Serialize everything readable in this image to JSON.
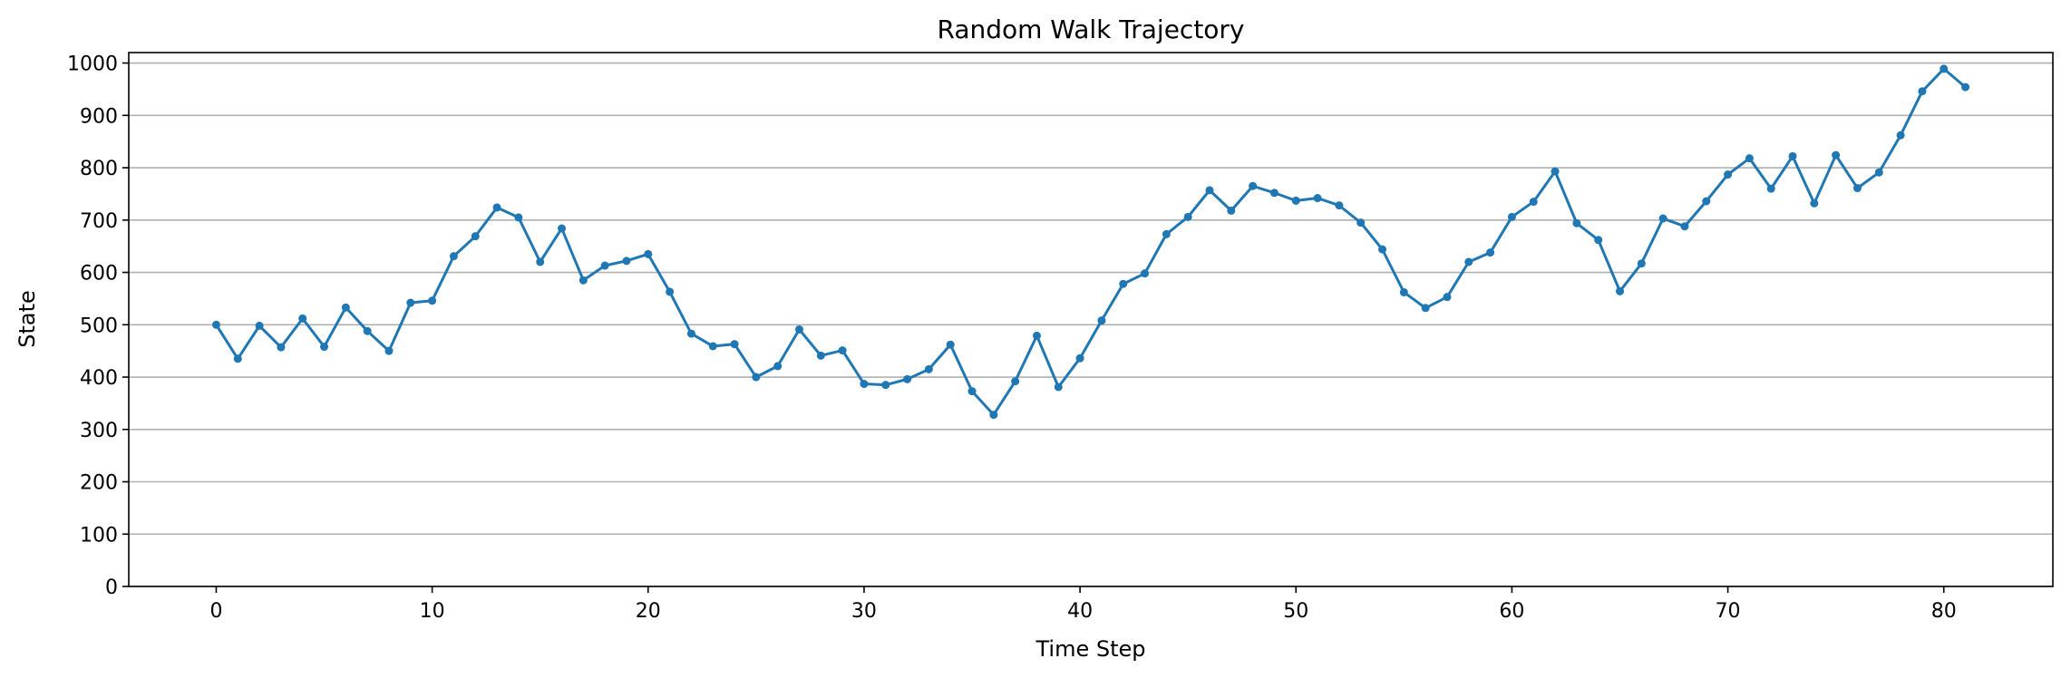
{
  "chart_data": {
    "type": "line",
    "title": "Random Walk Trajectory",
    "xlabel": "Time Step",
    "ylabel": "State",
    "xlim": [
      -4.05,
      85.05
    ],
    "ylim": [
      0,
      1020
    ],
    "x_ticks": [
      0,
      10,
      20,
      30,
      40,
      50,
      60,
      70,
      80
    ],
    "y_ticks": [
      0,
      100,
      200,
      300,
      400,
      500,
      600,
      700,
      800,
      900,
      1000
    ],
    "grid": "horizontal",
    "legend": "none",
    "series_color": "#1f77b4",
    "marker": "circle",
    "x": [
      0,
      1,
      2,
      3,
      4,
      5,
      6,
      7,
      8,
      9,
      10,
      11,
      12,
      13,
      14,
      15,
      16,
      17,
      18,
      19,
      20,
      21,
      22,
      23,
      24,
      25,
      26,
      27,
      28,
      29,
      30,
      31,
      32,
      33,
      34,
      35,
      36,
      37,
      38,
      39,
      40,
      41,
      42,
      43,
      44,
      45,
      46,
      47,
      48,
      49,
      50,
      51,
      52,
      53,
      54,
      55,
      56,
      57,
      58,
      59,
      60,
      61,
      62,
      63,
      64,
      65,
      66,
      67,
      68,
      69,
      70,
      71,
      72,
      73,
      74,
      75,
      76,
      77,
      78,
      79,
      80,
      81
    ],
    "y": [
      500,
      435,
      498,
      457,
      512,
      458,
      533,
      488,
      450,
      542,
      546,
      631,
      669,
      724,
      705,
      620,
      684,
      585,
      613,
      622,
      635,
      563,
      483,
      459,
      463,
      400,
      421,
      491,
      441,
      451,
      387,
      385,
      396,
      415,
      462,
      373,
      328,
      392,
      479,
      381,
      436,
      508,
      578,
      598,
      673,
      706,
      757,
      718,
      765,
      752,
      737,
      742,
      728,
      695,
      644,
      562,
      532,
      553,
      620,
      638,
      706,
      735,
      793,
      694,
      662,
      564,
      617,
      703,
      688,
      736,
      787,
      818,
      760,
      822,
      732,
      824,
      761,
      791,
      862,
      946,
      989,
      954
    ]
  }
}
